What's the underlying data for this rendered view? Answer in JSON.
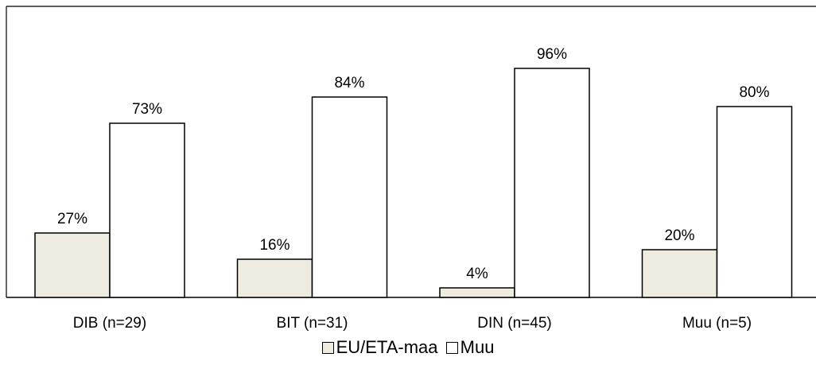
{
  "chart_data": {
    "type": "bar",
    "categories": [
      "DIB (n=29)",
      "BIT (n=31)",
      "DIN (n=45)",
      "Muu (n=5)"
    ],
    "series": [
      {
        "name": "EU/ETA-maa",
        "values": [
          27,
          16,
          4,
          20
        ],
        "labels": [
          "27%",
          "16%",
          "4%",
          "20%"
        ],
        "color": "#eeebe0"
      },
      {
        "name": "Muu",
        "values": [
          73,
          84,
          96,
          80
        ],
        "labels": [
          "73%",
          "84%",
          "96%",
          "80%"
        ],
        "color": "#ffffff"
      }
    ],
    "ylim": [
      0,
      100
    ],
    "grid": false,
    "legend_position": "bottom"
  }
}
